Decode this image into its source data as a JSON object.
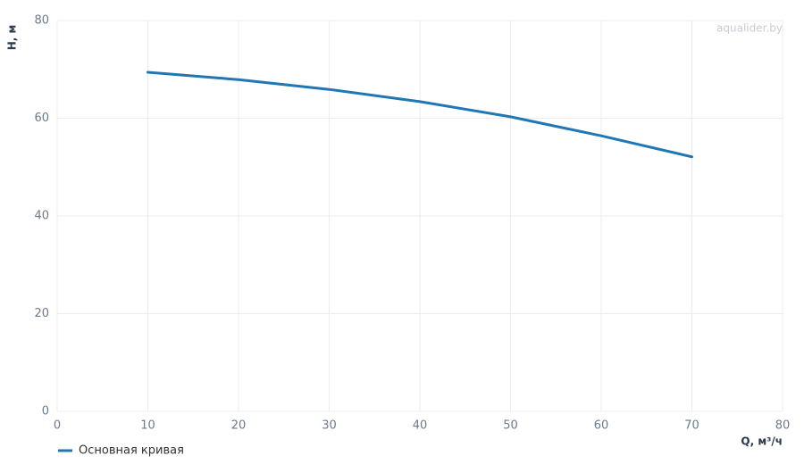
{
  "chart_data": {
    "type": "line",
    "watermark": "aqualider.by",
    "x_label": "Q, м³/ч",
    "y_label": "H, м",
    "x": [
      10,
      20,
      30,
      40,
      50,
      60,
      70
    ],
    "series": [
      {
        "name": "Основная кривая",
        "color": "#1f77b4",
        "values": [
          69.4,
          67.9,
          65.9,
          63.4,
          60.3,
          56.4,
          52.1
        ]
      }
    ],
    "xlim": [
      0,
      80
    ],
    "xticks": [
      0,
      10,
      20,
      30,
      40,
      50,
      60,
      70,
      80
    ],
    "ylim": [
      0,
      80
    ],
    "yticks": [
      0,
      20,
      40,
      60,
      80
    ],
    "grid": true
  }
}
